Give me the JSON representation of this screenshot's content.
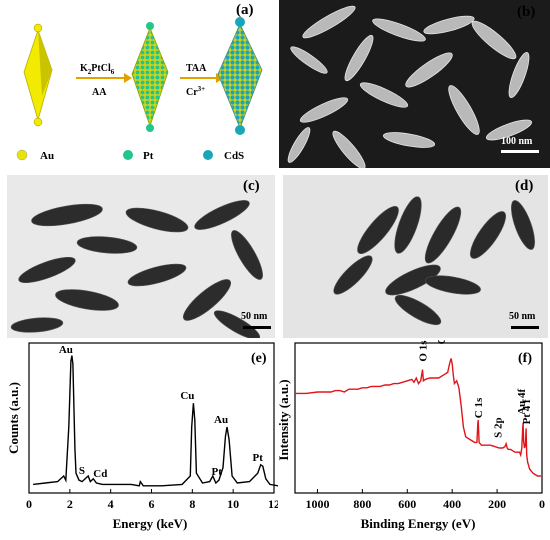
{
  "panels": {
    "a": {
      "label": "(a)",
      "step1_reagent": "K2PtCl6",
      "step1_reagent_main": "K",
      "step1_reagent_sub2": "2",
      "step1_reagent_mid": "PtCl",
      "step1_reagent_sub6": "6",
      "step1_reducer": "AA",
      "step2_reagent": "TAA",
      "step2_ion": "Cr",
      "step2_ion_sup": "3+",
      "legend": [
        {
          "name": "Au",
          "color": "#e8e400"
        },
        {
          "name": "Pt",
          "color": "#22c58a"
        },
        {
          "name": "CdS",
          "color": "#1aa6b8"
        }
      ]
    },
    "b": {
      "label": "(b)",
      "scale_bar": "100 nm"
    },
    "c": {
      "label": "(c)",
      "scale_bar": "50 nm"
    },
    "d": {
      "label": "(d)",
      "scale_bar": "50 nm"
    },
    "e": {
      "label": "(e)"
    },
    "f": {
      "label": "(f)"
    }
  },
  "chart_data": [
    {
      "type": "line",
      "panel": "e",
      "xlabel": "Energy (keV)",
      "ylabel": "Counts (a.u.)",
      "xlim": [
        0,
        12
      ],
      "xticks": [
        "0",
        "2",
        "4",
        "6",
        "8",
        "10",
        "12"
      ],
      "line_color": "#000000",
      "peaks": [
        {
          "x": 2.1,
          "y": 0.95,
          "label": "Au"
        },
        {
          "x": 2.3,
          "y": 0.1,
          "label": "S"
        },
        {
          "x": 3.1,
          "y": 0.08,
          "label": "Cd"
        },
        {
          "x": 8.05,
          "y": 0.62,
          "label": "Cu"
        },
        {
          "x": 9.0,
          "y": 0.08,
          "label": "Pt"
        },
        {
          "x": 9.7,
          "y": 0.45,
          "label": "Au"
        },
        {
          "x": 11.4,
          "y": 0.18,
          "label": "Pt"
        }
      ],
      "series": [
        {
          "x": [
            0.2,
            0.8,
            1.4,
            1.7,
            1.8,
            1.95,
            2.05,
            2.1,
            2.15,
            2.25,
            2.3,
            2.45,
            2.6,
            2.9,
            3.0,
            3.15,
            3.3,
            3.6,
            4.2,
            5.0,
            5.4,
            5.45,
            5.6,
            6.5,
            7.5,
            7.9,
            7.97,
            8.05,
            8.12,
            8.2,
            8.5,
            8.85,
            9.0,
            9.15,
            9.3,
            9.5,
            9.62,
            9.7,
            9.8,
            9.95,
            10.2,
            10.8,
            11.2,
            11.35,
            11.45,
            11.6,
            11.8,
            12.2
          ],
          "y": [
            0.04,
            0.05,
            0.06,
            0.1,
            0.07,
            0.45,
            0.92,
            0.96,
            0.9,
            0.3,
            0.12,
            0.07,
            0.06,
            0.1,
            0.06,
            0.08,
            0.05,
            0.04,
            0.04,
            0.04,
            0.03,
            0.06,
            0.03,
            0.03,
            0.04,
            0.1,
            0.45,
            0.62,
            0.5,
            0.12,
            0.05,
            0.06,
            0.1,
            0.05,
            0.07,
            0.16,
            0.38,
            0.45,
            0.36,
            0.1,
            0.05,
            0.06,
            0.12,
            0.18,
            0.17,
            0.08,
            0.04,
            0.03
          ]
        }
      ]
    },
    {
      "type": "line",
      "panel": "f",
      "xlabel": "Binding Energy (eV)",
      "ylabel": "Intensity (a.u.)",
      "xlim": [
        1100,
        0
      ],
      "xticks": [
        "1000",
        "800",
        "600",
        "400",
        "200",
        "0"
      ],
      "line_color": "#e0151a",
      "peaks": [
        {
          "x": 532,
          "label": "O 1s"
        },
        {
          "x": 405,
          "label": "Cd 3d"
        },
        {
          "x": 285,
          "label": "C 1s"
        },
        {
          "x": 162,
          "label": "S 2p"
        },
        {
          "x": 84,
          "label": "Au 4f"
        },
        {
          "x": 71,
          "label": "Pt 4 f"
        }
      ],
      "series": [
        {
          "x": [
            1100,
            1050,
            1000,
            960,
            940,
            920,
            900,
            880,
            860,
            840,
            820,
            800,
            780,
            760,
            740,
            720,
            700,
            680,
            660,
            640,
            620,
            600,
            580,
            570,
            560,
            550,
            540,
            535,
            532,
            528,
            520,
            500,
            480,
            460,
            440,
            420,
            412,
            405,
            400,
            395,
            390,
            380,
            370,
            360,
            350,
            340,
            320,
            300,
            290,
            286,
            284,
            280,
            270,
            250,
            230,
            210,
            190,
            175,
            165,
            160,
            155,
            150,
            140,
            130,
            120,
            110,
            100,
            95,
            90,
            86,
            84,
            82,
            78,
            74,
            71,
            68,
            64,
            55,
            40,
            20,
            5
          ],
          "y": [
            0.69,
            0.69,
            0.7,
            0.7,
            0.7,
            0.71,
            0.71,
            0.7,
            0.72,
            0.72,
            0.72,
            0.73,
            0.73,
            0.74,
            0.74,
            0.74,
            0.75,
            0.75,
            0.76,
            0.76,
            0.77,
            0.78,
            0.79,
            0.77,
            0.8,
            0.76,
            0.78,
            0.83,
            0.86,
            0.78,
            0.79,
            0.8,
            0.8,
            0.8,
            0.82,
            0.84,
            0.9,
            0.94,
            0.9,
            0.82,
            0.76,
            0.78,
            0.73,
            0.6,
            0.45,
            0.38,
            0.36,
            0.34,
            0.34,
            0.47,
            0.5,
            0.34,
            0.32,
            0.32,
            0.32,
            0.31,
            0.3,
            0.3,
            0.31,
            0.33,
            0.3,
            0.29,
            0.29,
            0.28,
            0.27,
            0.27,
            0.27,
            0.25,
            0.3,
            0.44,
            0.48,
            0.35,
            0.3,
            0.32,
            0.44,
            0.25,
            0.2,
            0.15,
            0.12,
            0.1,
            0.1
          ]
        }
      ]
    }
  ]
}
